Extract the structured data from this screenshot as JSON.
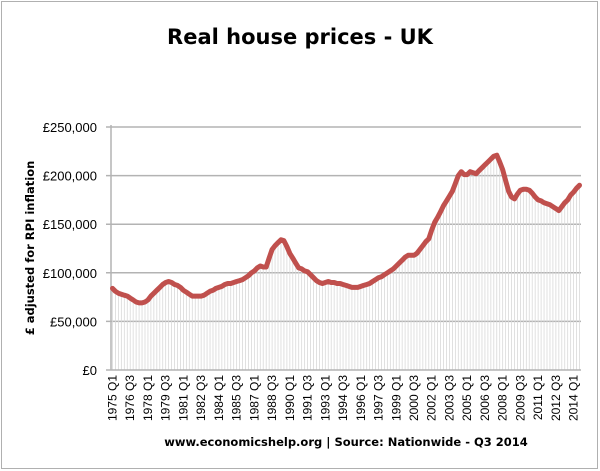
{
  "chart_data": {
    "type": "line",
    "title": "Real house prices - UK",
    "ylabel": "£ adjusted for RPI inflation",
    "xlabel": "",
    "footer": "www.economicshelp.org | Source: Nationwide - Q3 2014",
    "ylim": [
      0,
      250000
    ],
    "yticks": [
      0,
      50000,
      100000,
      150000,
      200000,
      250000
    ],
    "ytick_labels": [
      "£0",
      "£50,000",
      "£100,000",
      "£150,000",
      "£200,000",
      "£250,000"
    ],
    "grid": "horizontal",
    "tick_labels": [
      "1975 Q1",
      "1976 Q3",
      "1978 Q1",
      "1979 Q3",
      "1981 Q1",
      "1982 Q3",
      "1984 Q1",
      "1985 Q3",
      "1987 Q1",
      "1988 Q3",
      "1990 Q1",
      "1991 Q3",
      "1993 Q1",
      "1994 Q3",
      "1996 Q1",
      "1997 Q3",
      "1999 Q1",
      "2000 Q3",
      "2002 Q1",
      "2003 Q3",
      "2005 Q1",
      "2006 Q3",
      "2008 Q1",
      "2009 Q3",
      "2011 Q1",
      "2012 Q3",
      "2014 Q1"
    ],
    "categories": [
      "1975 Q1",
      "1975 Q2",
      "1975 Q3",
      "1975 Q4",
      "1976 Q1",
      "1976 Q2",
      "1976 Q3",
      "1976 Q4",
      "1977 Q1",
      "1977 Q2",
      "1977 Q3",
      "1977 Q4",
      "1978 Q1",
      "1978 Q2",
      "1978 Q3",
      "1978 Q4",
      "1979 Q1",
      "1979 Q2",
      "1979 Q3",
      "1979 Q4",
      "1980 Q1",
      "1980 Q2",
      "1980 Q3",
      "1980 Q4",
      "1981 Q1",
      "1981 Q2",
      "1981 Q3",
      "1981 Q4",
      "1982 Q1",
      "1982 Q2",
      "1982 Q3",
      "1982 Q4",
      "1983 Q1",
      "1983 Q2",
      "1983 Q3",
      "1983 Q4",
      "1984 Q1",
      "1984 Q2",
      "1984 Q3",
      "1984 Q4",
      "1985 Q1",
      "1985 Q2",
      "1985 Q3",
      "1985 Q4",
      "1986 Q1",
      "1986 Q2",
      "1986 Q3",
      "1986 Q4",
      "1987 Q1",
      "1987 Q2",
      "1987 Q3",
      "1987 Q4",
      "1988 Q1",
      "1988 Q2",
      "1988 Q3",
      "1988 Q4",
      "1989 Q1",
      "1989 Q2",
      "1989 Q3",
      "1989 Q4",
      "1990 Q1",
      "1990 Q2",
      "1990 Q3",
      "1990 Q4",
      "1991 Q1",
      "1991 Q2",
      "1991 Q3",
      "1991 Q4",
      "1992 Q1",
      "1992 Q2",
      "1992 Q3",
      "1992 Q4",
      "1993 Q1",
      "1993 Q2",
      "1993 Q3",
      "1993 Q4",
      "1994 Q1",
      "1994 Q2",
      "1994 Q3",
      "1994 Q4",
      "1995 Q1",
      "1995 Q2",
      "1995 Q3",
      "1995 Q4",
      "1996 Q1",
      "1996 Q2",
      "1996 Q3",
      "1996 Q4",
      "1997 Q1",
      "1997 Q2",
      "1997 Q3",
      "1997 Q4",
      "1998 Q1",
      "1998 Q2",
      "1998 Q3",
      "1998 Q4",
      "1999 Q1",
      "1999 Q2",
      "1999 Q3",
      "1999 Q4",
      "2000 Q1",
      "2000 Q2",
      "2000 Q3",
      "2000 Q4",
      "2001 Q1",
      "2001 Q2",
      "2001 Q3",
      "2001 Q4",
      "2002 Q1",
      "2002 Q2",
      "2002 Q3",
      "2002 Q4",
      "2003 Q1",
      "2003 Q2",
      "2003 Q3",
      "2003 Q4",
      "2004 Q1",
      "2004 Q2",
      "2004 Q3",
      "2004 Q4",
      "2005 Q1",
      "2005 Q2",
      "2005 Q3",
      "2005 Q4",
      "2006 Q1",
      "2006 Q2",
      "2006 Q3",
      "2006 Q4",
      "2007 Q1",
      "2007 Q2",
      "2007 Q3",
      "2007 Q4",
      "2008 Q1",
      "2008 Q2",
      "2008 Q3",
      "2008 Q4",
      "2009 Q1",
      "2009 Q2",
      "2009 Q3",
      "2009 Q4",
      "2010 Q1",
      "2010 Q2",
      "2010 Q3",
      "2010 Q4",
      "2011 Q1",
      "2011 Q2",
      "2011 Q3",
      "2011 Q4",
      "2012 Q1",
      "2012 Q2",
      "2012 Q3",
      "2012 Q4",
      "2013 Q1",
      "2013 Q2",
      "2013 Q3",
      "2013 Q4",
      "2014 Q1",
      "2014 Q2",
      "2014 Q3"
    ],
    "values": [
      84000,
      81000,
      79000,
      78000,
      77000,
      76000,
      74000,
      72000,
      70000,
      69000,
      69000,
      70000,
      72000,
      76000,
      79000,
      82000,
      85000,
      88000,
      90000,
      91000,
      90000,
      88000,
      87000,
      85000,
      82000,
      80000,
      78000,
      76000,
      76000,
      76000,
      76000,
      77000,
      79000,
      81000,
      82000,
      84000,
      85000,
      86000,
      88000,
      89000,
      89000,
      90000,
      91000,
      92000,
      93000,
      95000,
      97000,
      100000,
      102000,
      105000,
      107000,
      106000,
      106000,
      115000,
      124000,
      128000,
      131000,
      134000,
      133000,
      127000,
      120000,
      115000,
      110000,
      105000,
      104000,
      102000,
      101000,
      98000,
      95000,
      92000,
      90000,
      89000,
      90000,
      91000,
      90000,
      90000,
      89000,
      89000,
      88000,
      87000,
      86000,
      85000,
      85000,
      85000,
      86000,
      87000,
      88000,
      89000,
      91000,
      93000,
      95000,
      96000,
      98000,
      100000,
      102000,
      104000,
      107000,
      110000,
      113000,
      116000,
      118000,
      118000,
      118000,
      120000,
      124000,
      128000,
      132000,
      135000,
      144000,
      152000,
      157000,
      163000,
      169000,
      174000,
      179000,
      184000,
      192000,
      200000,
      204000,
      201000,
      201000,
      204000,
      203000,
      202000,
      205000,
      208000,
      211000,
      214000,
      217000,
      220000,
      221000,
      214000,
      206000,
      195000,
      184000,
      178000,
      176000,
      181000,
      185000,
      186000,
      186000,
      185000,
      182000,
      178000,
      175000,
      174000,
      172000,
      171000,
      170000,
      168000,
      166000,
      164000,
      168000,
      172000,
      175000,
      180000,
      183000,
      187000,
      190000
    ],
    "colors": {
      "line": "#c0504d",
      "droplines": "#d9d9d9",
      "grid": "#b3b3b3"
    }
  }
}
